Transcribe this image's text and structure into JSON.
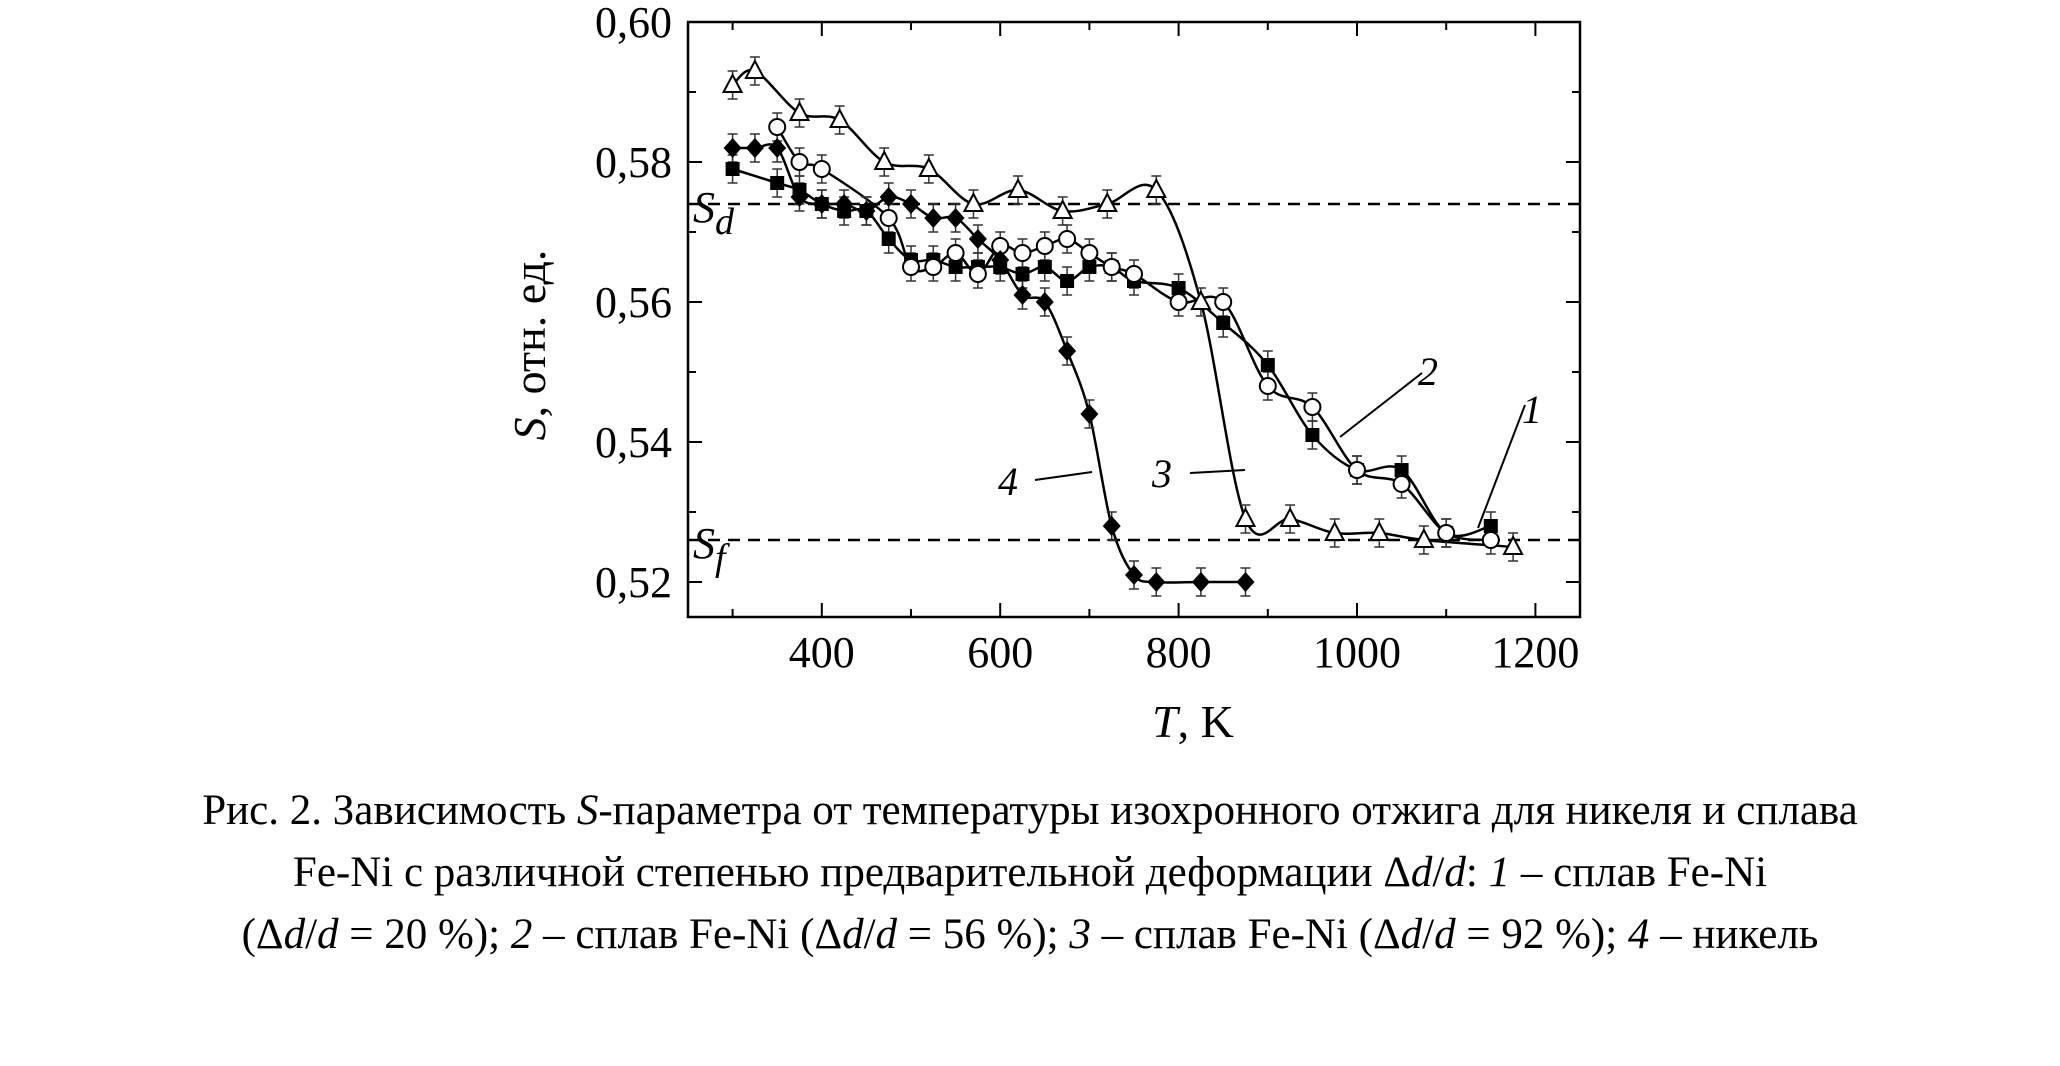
{
  "chart_data": {
    "type": "scatter",
    "x_axis": {
      "label_italic": "T",
      "label_rest": ", K",
      "range": [
        250,
        1250
      ],
      "ticks": [
        400,
        600,
        800,
        1000,
        1200
      ],
      "tick_labels": [
        "400",
        "600",
        "800",
        "1000",
        "1200"
      ]
    },
    "y_axis": {
      "label_italic": "S",
      "label_rest": ", отн. ед.",
      "range": [
        0.515,
        0.6
      ],
      "ticks": [
        0.52,
        0.54,
        0.56,
        0.58,
        0.6
      ],
      "tick_labels": [
        "0,52",
        "0,54",
        "0,56",
        "0,58",
        "0,60"
      ]
    },
    "reference_lines": [
      {
        "label_main": "S",
        "label_sub": "d",
        "y": 0.574
      },
      {
        "label_main": "S",
        "label_sub": "f",
        "y": 0.526
      }
    ],
    "series": [
      {
        "name": "1",
        "marker": "square-filled",
        "x": [
          300,
          350,
          375,
          400,
          425,
          450,
          475,
          500,
          525,
          550,
          575,
          600,
          625,
          650,
          675,
          700,
          725,
          750,
          800,
          850,
          900,
          950,
          1000,
          1050,
          1100,
          1150
        ],
        "y": [
          0.579,
          0.577,
          0.576,
          0.574,
          0.573,
          0.573,
          0.569,
          0.566,
          0.566,
          0.565,
          0.565,
          0.565,
          0.564,
          0.565,
          0.563,
          0.565,
          0.565,
          0.563,
          0.562,
          0.557,
          0.551,
          0.541,
          0.536,
          0.536,
          0.527,
          0.528
        ]
      },
      {
        "name": "2",
        "marker": "circle-open",
        "x": [
          350,
          375,
          400,
          475,
          500,
          525,
          550,
          575,
          600,
          625,
          650,
          675,
          700,
          725,
          750,
          800,
          850,
          900,
          950,
          1000,
          1050,
          1100,
          1150
        ],
        "y": [
          0.585,
          0.58,
          0.579,
          0.572,
          0.565,
          0.565,
          0.567,
          0.564,
          0.568,
          0.567,
          0.568,
          0.569,
          0.567,
          0.565,
          0.564,
          0.56,
          0.56,
          0.548,
          0.545,
          0.536,
          0.534,
          0.527,
          0.526
        ]
      },
      {
        "name": "3",
        "marker": "triangle-open",
        "x": [
          300,
          325,
          375,
          420,
          470,
          520,
          570,
          620,
          670,
          720,
          775,
          825,
          875,
          925,
          975,
          1025,
          1075,
          1175
        ],
        "y": [
          0.591,
          0.593,
          0.587,
          0.586,
          0.58,
          0.579,
          0.574,
          0.576,
          0.573,
          0.574,
          0.576,
          0.56,
          0.529,
          0.529,
          0.527,
          0.527,
          0.526,
          0.525
        ]
      },
      {
        "name": "4",
        "marker": "diamond-filled",
        "x": [
          300,
          325,
          350,
          375,
          400,
          425,
          450,
          475,
          500,
          525,
          550,
          575,
          600,
          625,
          650,
          675,
          700,
          725,
          750,
          775,
          825,
          875
        ],
        "y": [
          0.582,
          0.582,
          0.582,
          0.575,
          0.574,
          0.574,
          0.573,
          0.575,
          0.574,
          0.572,
          0.572,
          0.569,
          0.566,
          0.561,
          0.56,
          0.553,
          0.544,
          0.528,
          0.521,
          0.52,
          0.52,
          0.52
        ]
      }
    ]
  },
  "caption": {
    "line1": {
      "p1": "Рис. 2. Зависимость ",
      "p2": "S",
      "p3": "-параметра от температуры изохронного отжига для никеля и сплава"
    },
    "line2": {
      "p1": "Fe-Ni с различной степенью предварительной деформации Δ",
      "p2": "d",
      "p3": "/",
      "p4": "d",
      "p5": ": ",
      "p6": "1",
      "p7": " – сплав Fe-Ni"
    },
    "line3": {
      "p1": "(Δ",
      "p2": "d",
      "p3": "/",
      "p4": "d",
      "p5": " = 20 %); ",
      "p6": "2",
      "p7": " – сплав Fe-Ni (Δ",
      "p8": "d",
      "p9": "/",
      "p10": "d",
      "p11": " = 56 %); ",
      "p12": "3",
      "p13": " – сплав Fe-Ni (Δ",
      "p14": "d",
      "p15": "/",
      "p16": "d",
      "p17": " = 92 %); ",
      "p18": "4",
      "p19": " – никель"
    }
  }
}
